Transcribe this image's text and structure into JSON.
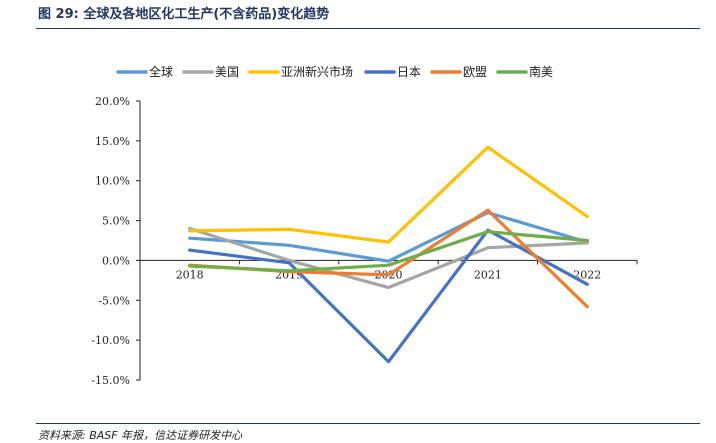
{
  "title": "图 29:  全球及各地区化工生产(不含药品)变化趋势",
  "source": "资料来源: BASF 年报，信达证券研发中心",
  "chart_data": {
    "type": "line",
    "categories": [
      "2018",
      "2019",
      "2020",
      "2021",
      "2022"
    ],
    "y_tick_labels": [
      "20.0%",
      "15.0%",
      "10.0%",
      "5.0%",
      "0.0%",
      "-5.0%",
      "-10.0%",
      "-15.0%"
    ],
    "ylim": [
      -15,
      20
    ],
    "y_unit": "%",
    "legend_position": "top",
    "grid": false,
    "series": [
      {
        "name": "全球",
        "color": "#5b9bd5",
        "values": [
          2.8,
          1.9,
          -0.1,
          6.0,
          2.3
        ]
      },
      {
        "name": "美国",
        "color": "#a5a5a5",
        "values": [
          4.0,
          0.0,
          -3.4,
          1.6,
          2.2
        ]
      },
      {
        "name": "亚洲新兴市场",
        "color": "#ffc000",
        "values": [
          3.7,
          3.9,
          2.3,
          14.2,
          5.5
        ]
      },
      {
        "name": "日本",
        "color": "#4472c4",
        "values": [
          1.3,
          -0.3,
          -12.7,
          3.8,
          -3.0
        ]
      },
      {
        "name": "欧盟",
        "color": "#ed7d31",
        "values": [
          -0.6,
          -1.4,
          -1.8,
          6.3,
          -5.8
        ]
      },
      {
        "name": "南美",
        "color": "#70ad47",
        "values": [
          -0.7,
          -1.3,
          -0.6,
          3.6,
          2.5
        ]
      }
    ]
  }
}
